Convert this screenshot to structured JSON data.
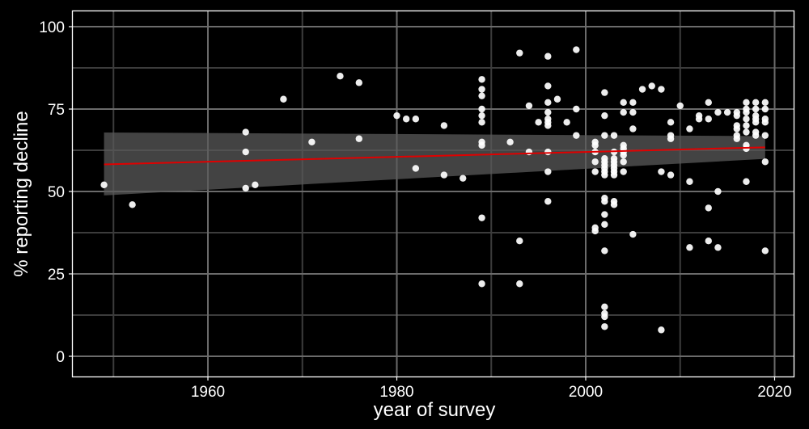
{
  "chart_data": {
    "type": "scatter",
    "title": "",
    "xlabel": "year of survey",
    "ylabel": "% reporting decline",
    "xlim": [
      1945.7,
      2022.3
    ],
    "ylim": [
      -4.7,
      106
    ],
    "x_ticks": [
      1960,
      1980,
      2000,
      2020
    ],
    "y_ticks": [
      0,
      25,
      50,
      75,
      100
    ],
    "grid": true,
    "legend": null,
    "colors": {
      "background": "#000000",
      "panel_border": "#ffffff",
      "grid_major": "#6b6b6b",
      "grid_minor": "#3c3c3c",
      "points": "#ffffff",
      "trend_line": "#e00000",
      "confidence_band": "#595959"
    },
    "trend": {
      "method": "linear fit",
      "x": [
        1949,
        2019
      ],
      "y": [
        58.2,
        63.4
      ],
      "ci_lower": [
        48.8,
        59.9
      ],
      "ci_upper": [
        67.9,
        66.8
      ]
    },
    "points": [
      [
        1949,
        52
      ],
      [
        1952,
        46
      ],
      [
        1964,
        68
      ],
      [
        1964,
        62
      ],
      [
        1964,
        51
      ],
      [
        1965,
        52
      ],
      [
        1968,
        78
      ],
      [
        1971,
        65
      ],
      [
        1974,
        85
      ],
      [
        1976,
        83
      ],
      [
        1976,
        66
      ],
      [
        1980,
        73
      ],
      [
        1981,
        72
      ],
      [
        1982,
        72
      ],
      [
        1982,
        57
      ],
      [
        1985,
        70
      ],
      [
        1985,
        55
      ],
      [
        1987,
        54
      ],
      [
        1989,
        84
      ],
      [
        1989,
        81
      ],
      [
        1989,
        79
      ],
      [
        1989,
        75
      ],
      [
        1989,
        73
      ],
      [
        1989,
        71
      ],
      [
        1989,
        65
      ],
      [
        1989,
        64
      ],
      [
        1989,
        42
      ],
      [
        1989,
        22
      ],
      [
        1992,
        65
      ],
      [
        1993,
        92
      ],
      [
        1993,
        35
      ],
      [
        1993,
        22
      ],
      [
        1994,
        76
      ],
      [
        1994,
        62
      ],
      [
        1995,
        71
      ],
      [
        1996,
        91
      ],
      [
        1996,
        82
      ],
      [
        1996,
        77
      ],
      [
        1996,
        74
      ],
      [
        1996,
        72
      ],
      [
        1996,
        71
      ],
      [
        1996,
        70
      ],
      [
        1996,
        62
      ],
      [
        1996,
        56
      ],
      [
        1996,
        47
      ],
      [
        1997,
        78
      ],
      [
        1998,
        71
      ],
      [
        1999,
        93
      ],
      [
        1999,
        75
      ],
      [
        1999,
        67
      ],
      [
        2001,
        65
      ],
      [
        2001,
        64
      ],
      [
        2001,
        62
      ],
      [
        2001,
        59
      ],
      [
        2001,
        56
      ],
      [
        2001,
        39
      ],
      [
        2001,
        38
      ],
      [
        2002,
        80
      ],
      [
        2002,
        73
      ],
      [
        2002,
        67
      ],
      [
        2002,
        60
      ],
      [
        2002,
        59
      ],
      [
        2002,
        58
      ],
      [
        2002,
        57
      ],
      [
        2002,
        56
      ],
      [
        2002,
        55
      ],
      [
        2002,
        48
      ],
      [
        2002,
        47
      ],
      [
        2002,
        43
      ],
      [
        2002,
        40
      ],
      [
        2002,
        32
      ],
      [
        2002,
        15
      ],
      [
        2002,
        13
      ],
      [
        2002,
        12
      ],
      [
        2002,
        9
      ],
      [
        2003,
        67
      ],
      [
        2003,
        62
      ],
      [
        2003,
        60
      ],
      [
        2003,
        59
      ],
      [
        2003,
        58
      ],
      [
        2003,
        57
      ],
      [
        2003,
        56
      ],
      [
        2003,
        55
      ],
      [
        2003,
        47
      ],
      [
        2003,
        46
      ],
      [
        2004,
        77
      ],
      [
        2004,
        74
      ],
      [
        2004,
        64
      ],
      [
        2004,
        63
      ],
      [
        2004,
        62
      ],
      [
        2004,
        61
      ],
      [
        2004,
        59
      ],
      [
        2004,
        56
      ],
      [
        2005,
        77
      ],
      [
        2005,
        74
      ],
      [
        2005,
        69
      ],
      [
        2005,
        37
      ],
      [
        2006,
        81
      ],
      [
        2007,
        82
      ],
      [
        2008,
        81
      ],
      [
        2008,
        56
      ],
      [
        2008,
        8
      ],
      [
        2009,
        71
      ],
      [
        2009,
        67
      ],
      [
        2009,
        66
      ],
      [
        2009,
        55
      ],
      [
        2010,
        76
      ],
      [
        2011,
        69
      ],
      [
        2011,
        53
      ],
      [
        2011,
        33
      ],
      [
        2012,
        73
      ],
      [
        2012,
        72
      ],
      [
        2013,
        77
      ],
      [
        2013,
        72
      ],
      [
        2013,
        45
      ],
      [
        2013,
        35
      ],
      [
        2014,
        74
      ],
      [
        2014,
        50
      ],
      [
        2014,
        33
      ],
      [
        2015,
        74
      ],
      [
        2016,
        74
      ],
      [
        2016,
        73
      ],
      [
        2016,
        70
      ],
      [
        2016,
        69
      ],
      [
        2016,
        67
      ],
      [
        2016,
        66
      ],
      [
        2017,
        77
      ],
      [
        2017,
        75
      ],
      [
        2017,
        74
      ],
      [
        2017,
        72
      ],
      [
        2017,
        70
      ],
      [
        2017,
        68
      ],
      [
        2017,
        64
      ],
      [
        2017,
        63
      ],
      [
        2017,
        53
      ],
      [
        2018,
        77
      ],
      [
        2018,
        75
      ],
      [
        2018,
        73
      ],
      [
        2018,
        72
      ],
      [
        2018,
        71
      ],
      [
        2018,
        68
      ],
      [
        2018,
        67
      ],
      [
        2019,
        77
      ],
      [
        2019,
        75
      ],
      [
        2019,
        72
      ],
      [
        2019,
        71
      ],
      [
        2019,
        67
      ],
      [
        2019,
        59
      ],
      [
        2019,
        32
      ]
    ]
  }
}
